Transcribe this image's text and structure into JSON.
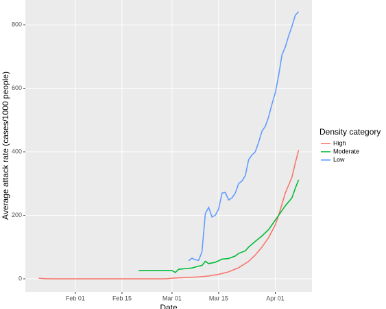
{
  "chart_data": {
    "type": "line",
    "x_label": "Date",
    "y_label": "Average attack rate (cases/1000 people)",
    "legend_title": "Density category",
    "legend_position": "right",
    "grid": true,
    "xlim": [
      17,
      103
    ],
    "ylim": [
      -41,
      878
    ],
    "xticks": [
      {
        "value": 32,
        "label": "Feb 01"
      },
      {
        "value": 46,
        "label": "Feb 15"
      },
      {
        "value": 61,
        "label": "Mar 01"
      },
      {
        "value": 75,
        "label": "Mar 15"
      },
      {
        "value": 92,
        "label": "Apr 01"
      }
    ],
    "yticks": [
      0,
      200,
      400,
      600,
      800
    ],
    "series": [
      {
        "name": "High",
        "color": "#F8766D",
        "x": [
          21,
          23,
          25,
          30,
          40,
          50,
          59,
          61,
          65,
          69,
          72,
          75,
          78,
          81,
          84,
          86,
          88,
          90,
          92,
          93,
          94,
          95,
          96,
          97,
          98,
          99
        ],
        "values": [
          2,
          0.5,
          0,
          0,
          0,
          0,
          0,
          2,
          4,
          6,
          9,
          14,
          22,
          35,
          55,
          75,
          100,
          130,
          170,
          200,
          235,
          270,
          295,
          320,
          365,
          405
        ]
      },
      {
        "name": "Moderate",
        "color": "#00BA38",
        "x": [
          51,
          55,
          61,
          62,
          63,
          65,
          67,
          69,
          70,
          71,
          72,
          74,
          76,
          78,
          80,
          81,
          83,
          84,
          86,
          88,
          90,
          92,
          93,
          95,
          97,
          98,
          99
        ],
        "values": [
          26,
          26,
          26,
          20,
          30,
          32,
          34,
          40,
          42,
          55,
          48,
          52,
          62,
          64,
          72,
          80,
          88,
          100,
          118,
          135,
          155,
          185,
          200,
          230,
          255,
          285,
          312
        ]
      },
      {
        "name": "Low",
        "color": "#619CFF",
        "x": [
          66,
          67,
          68,
          69,
          70,
          71,
          72,
          73,
          74,
          75,
          76,
          77,
          78,
          79,
          80,
          81,
          82,
          83,
          84,
          85,
          86,
          87,
          88,
          89,
          90,
          91,
          92,
          93,
          94,
          95,
          96,
          97,
          98,
          99
        ],
        "values": [
          57,
          65,
          60,
          58,
          85,
          205,
          225,
          195,
          200,
          220,
          270,
          272,
          248,
          255,
          270,
          300,
          308,
          325,
          375,
          390,
          400,
          430,
          465,
          480,
          510,
          550,
          586,
          640,
          705,
          730,
          765,
          795,
          830,
          841
        ]
      }
    ]
  }
}
